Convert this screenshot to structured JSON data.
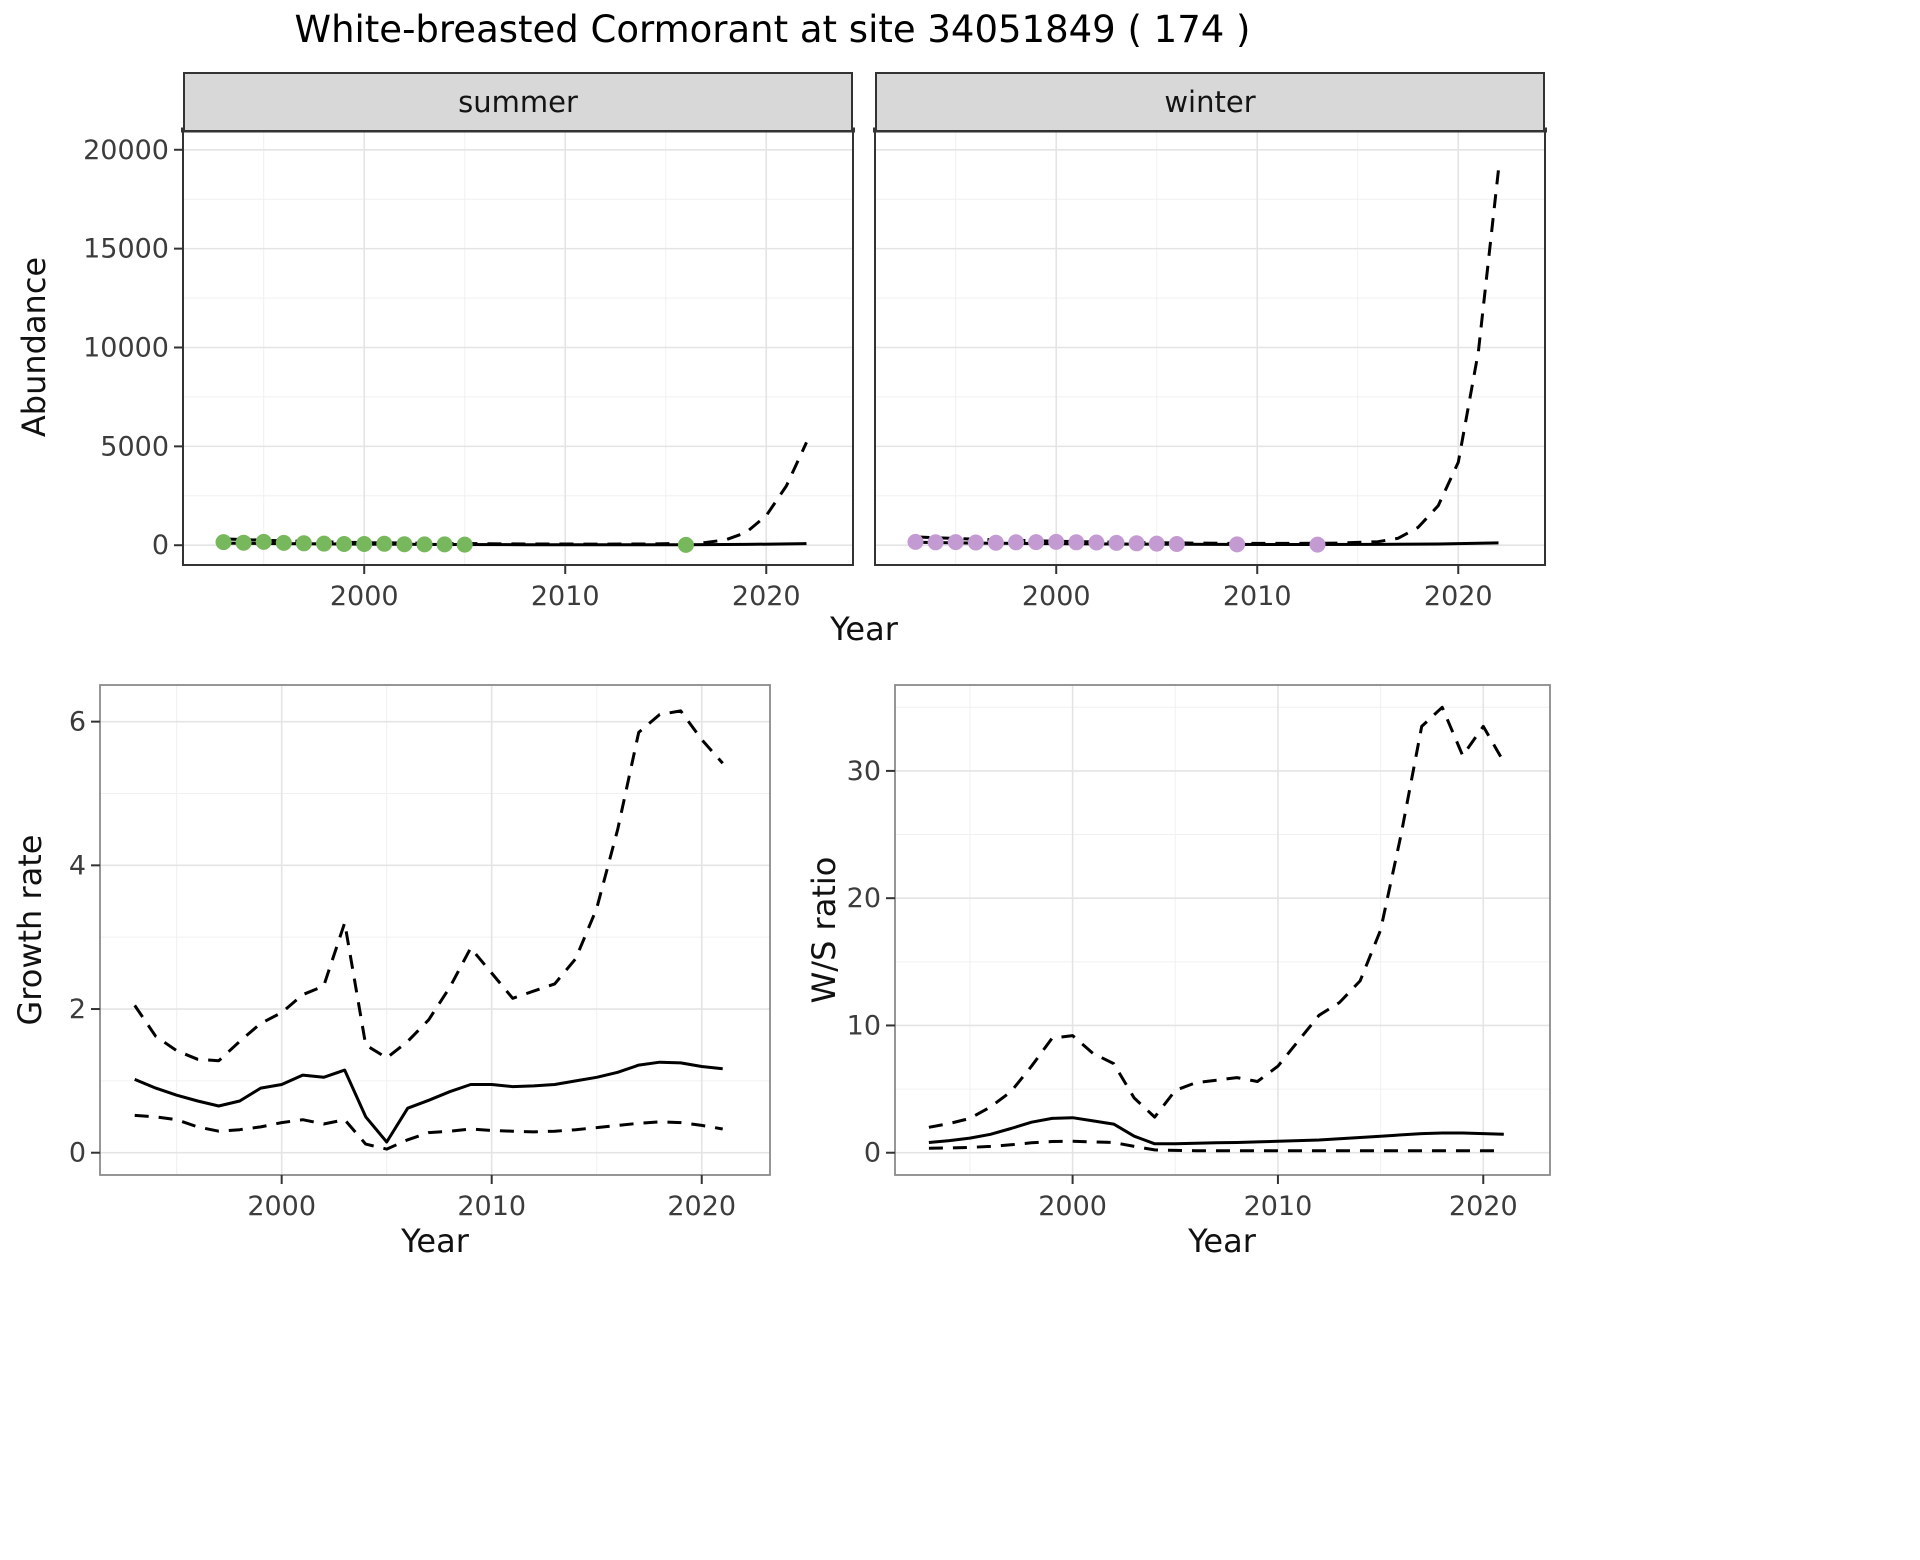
{
  "title": "White-breasted Cormorant at site 34051849 ( 174 )",
  "colors": {
    "line": "#000000",
    "summer_point": "#78b85c",
    "winter_point": "#c39bd2",
    "grid_major": "#e4e4e4",
    "grid_minor": "#f0f0f0",
    "strip_bg": "#d8d8d8",
    "panel_border_dark": "#333333",
    "panel_border_grey": "#8a8a8a",
    "tick_text": "#3c3c3c"
  },
  "chart_data": [
    {
      "type": "line",
      "facet_label": "summer",
      "xlabel": "Year",
      "ylabel": "Abundance",
      "xlim": [
        1992.5,
        2022.8
      ],
      "ylim": [
        0,
        20000
      ],
      "xticks": [
        2000,
        2010,
        2020
      ],
      "yticks": [
        0,
        5000,
        10000,
        15000,
        20000
      ],
      "points": {
        "color": "#78b85c",
        "x": [
          1993,
          1994,
          1995,
          1996,
          1997,
          1998,
          1999,
          2000,
          2001,
          2002,
          2003,
          2004,
          2005,
          2016
        ],
        "y": [
          160,
          130,
          170,
          120,
          100,
          80,
          60,
          60,
          70,
          50,
          40,
          40,
          30,
          15
        ]
      },
      "series": [
        {
          "name": "fitted",
          "style": "solid",
          "x": [
            1993,
            1996,
            2000,
            2004,
            2008,
            2012,
            2016,
            2019,
            2022
          ],
          "y": [
            110,
            80,
            55,
            35,
            25,
            20,
            25,
            40,
            80
          ]
        },
        {
          "name": "upper-ci",
          "style": "dashed",
          "x": [
            1993,
            1996,
            2000,
            2004,
            2008,
            2012,
            2014,
            2016,
            2017,
            2018,
            2019,
            2020,
            2021,
            2022
          ],
          "y": [
            320,
            220,
            130,
            90,
            60,
            55,
            60,
            90,
            140,
            280,
            650,
            1500,
            3000,
            5200
          ]
        }
      ]
    },
    {
      "type": "line",
      "facet_label": "winter",
      "xlabel": "Year",
      "ylabel": "Abundance",
      "xlim": [
        1992.5,
        2022.8
      ],
      "ylim": [
        0,
        20000
      ],
      "xticks": [
        2000,
        2010,
        2020
      ],
      "yticks": [
        0,
        5000,
        10000,
        15000,
        20000
      ],
      "points": {
        "color": "#c39bd2",
        "x": [
          1993,
          1994,
          1995,
          1996,
          1997,
          1998,
          1999,
          2000,
          2001,
          2002,
          2003,
          2004,
          2005,
          2006,
          2009,
          2013
        ],
        "y": [
          170,
          150,
          160,
          140,
          130,
          150,
          160,
          170,
          150,
          140,
          120,
          100,
          80,
          60,
          40,
          30
        ]
      },
      "series": [
        {
          "name": "fitted",
          "style": "solid",
          "x": [
            1993,
            1996,
            2000,
            2004,
            2008,
            2012,
            2016,
            2019,
            2022
          ],
          "y": [
            150,
            110,
            80,
            55,
            40,
            35,
            40,
            60,
            120
          ]
        },
        {
          "name": "upper-ci",
          "style": "dashed",
          "x": [
            1993,
            1996,
            2000,
            2004,
            2008,
            2012,
            2014,
            2016,
            2017,
            2018,
            2019,
            2020,
            2021,
            2022
          ],
          "y": [
            420,
            300,
            200,
            140,
            100,
            90,
            110,
            180,
            350,
            900,
            2000,
            4200,
            9800,
            19000
          ]
        }
      ]
    },
    {
      "type": "line",
      "xlabel": "Year",
      "ylabel": "Growth rate",
      "xlim": [
        1992.8,
        2021.8
      ],
      "ylim": [
        0,
        6.2
      ],
      "xticks": [
        2000,
        2010,
        2020
      ],
      "yticks": [
        0,
        2,
        4,
        6
      ],
      "x": [
        1993,
        1994,
        1995,
        1996,
        1997,
        1998,
        1999,
        2000,
        2001,
        2002,
        2003,
        2004,
        2005,
        2006,
        2007,
        2008,
        2009,
        2010,
        2011,
        2012,
        2013,
        2014,
        2015,
        2016,
        2017,
        2018,
        2019,
        2020,
        2021
      ],
      "series": [
        {
          "name": "fitted",
          "style": "solid",
          "x": [
            1993,
            1994,
            1995,
            1996,
            1997,
            1998,
            1999,
            2000,
            2001,
            2002,
            2003,
            2004,
            2005,
            2006,
            2007,
            2008,
            2009,
            2010,
            2011,
            2012,
            2013,
            2014,
            2015,
            2016,
            2017,
            2018,
            2019,
            2020,
            2021
          ],
          "y": [
            1.02,
            0.9,
            0.8,
            0.72,
            0.65,
            0.72,
            0.9,
            0.95,
            1.08,
            1.05,
            1.15,
            0.5,
            0.15,
            0.62,
            0.73,
            0.85,
            0.95,
            0.95,
            0.92,
            0.93,
            0.95,
            1.0,
            1.05,
            1.12,
            1.22,
            1.26,
            1.25,
            1.2,
            1.17
          ]
        },
        {
          "name": "upper-ci",
          "style": "dashed",
          "x": [
            1993,
            1994,
            1995,
            1996,
            1997,
            1998,
            1999,
            2000,
            2001,
            2002,
            2003,
            2004,
            2005,
            2006,
            2007,
            2008,
            2009,
            2010,
            2011,
            2012,
            2013,
            2014,
            2015,
            2016,
            2017,
            2018,
            2019,
            2020,
            2021
          ],
          "y": [
            2.05,
            1.62,
            1.42,
            1.3,
            1.28,
            1.55,
            1.8,
            1.95,
            2.2,
            2.32,
            3.2,
            1.5,
            1.32,
            1.55,
            1.85,
            2.3,
            2.85,
            2.5,
            2.15,
            2.25,
            2.35,
            2.7,
            3.4,
            4.5,
            5.85,
            6.1,
            6.15,
            5.75,
            5.42
          ]
        },
        {
          "name": "lower-ci",
          "style": "dashed",
          "x": [
            1993,
            1994,
            1995,
            1996,
            1997,
            1998,
            1999,
            2000,
            2001,
            2002,
            2003,
            2004,
            2005,
            2006,
            2007,
            2008,
            2009,
            2010,
            2011,
            2012,
            2013,
            2014,
            2015,
            2016,
            2017,
            2018,
            2019,
            2020,
            2021
          ],
          "y": [
            0.52,
            0.5,
            0.46,
            0.36,
            0.3,
            0.32,
            0.36,
            0.42,
            0.46,
            0.4,
            0.46,
            0.12,
            0.05,
            0.18,
            0.28,
            0.3,
            0.33,
            0.31,
            0.3,
            0.29,
            0.3,
            0.32,
            0.35,
            0.38,
            0.41,
            0.43,
            0.42,
            0.38,
            0.33
          ]
        }
      ]
    },
    {
      "type": "line",
      "xlabel": "Year",
      "ylabel": "W/S ratio",
      "xlim": [
        1992.8,
        2021.8
      ],
      "ylim": [
        0,
        35
      ],
      "xticks": [
        2000,
        2010,
        2020
      ],
      "yticks": [
        0,
        10,
        20,
        30
      ],
      "series": [
        {
          "name": "fitted",
          "style": "solid",
          "x": [
            1993,
            1994,
            1995,
            1996,
            1997,
            1998,
            1999,
            2000,
            2001,
            2002,
            2003,
            2004,
            2005,
            2006,
            2007,
            2008,
            2009,
            2010,
            2011,
            2012,
            2013,
            2014,
            2015,
            2016,
            2017,
            2018,
            2019,
            2020,
            2021
          ],
          "y": [
            0.8,
            0.95,
            1.15,
            1.45,
            1.9,
            2.4,
            2.7,
            2.75,
            2.5,
            2.25,
            1.3,
            0.7,
            0.7,
            0.75,
            0.78,
            0.8,
            0.85,
            0.9,
            0.95,
            1.0,
            1.1,
            1.2,
            1.3,
            1.4,
            1.5,
            1.55,
            1.55,
            1.5,
            1.45
          ]
        },
        {
          "name": "upper-ci",
          "style": "dashed",
          "x": [
            1993,
            1994,
            1995,
            1996,
            1997,
            1998,
            1999,
            2000,
            2001,
            2002,
            2003,
            2004,
            2005,
            2006,
            2007,
            2008,
            2009,
            2010,
            2011,
            2012,
            2013,
            2014,
            2015,
            2016,
            2017,
            2018,
            2019,
            2020,
            2021
          ],
          "y": [
            2.0,
            2.3,
            2.7,
            3.6,
            4.8,
            6.8,
            9.0,
            9.2,
            7.8,
            7.0,
            4.3,
            2.8,
            4.9,
            5.5,
            5.7,
            5.9,
            5.6,
            6.8,
            8.8,
            10.8,
            11.8,
            13.5,
            17.5,
            25.0,
            33.5,
            35.0,
            31.2,
            33.5,
            30.7
          ]
        },
        {
          "name": "lower-ci",
          "style": "dashed",
          "x": [
            1993,
            1994,
            1995,
            1996,
            1997,
            1998,
            1999,
            2000,
            2001,
            2002,
            2003,
            2004,
            2005,
            2006,
            2007,
            2008,
            2009,
            2010,
            2011,
            2012,
            2013,
            2014,
            2015,
            2016,
            2017,
            2018,
            2019,
            2020,
            2021
          ],
          "y": [
            0.35,
            0.38,
            0.42,
            0.5,
            0.62,
            0.78,
            0.88,
            0.9,
            0.85,
            0.8,
            0.5,
            0.22,
            0.18,
            0.16,
            0.15,
            0.15,
            0.15,
            0.15,
            0.15,
            0.15,
            0.15,
            0.15,
            0.15,
            0.15,
            0.15,
            0.15,
            0.15,
            0.15,
            0.15
          ]
        }
      ]
    }
  ]
}
